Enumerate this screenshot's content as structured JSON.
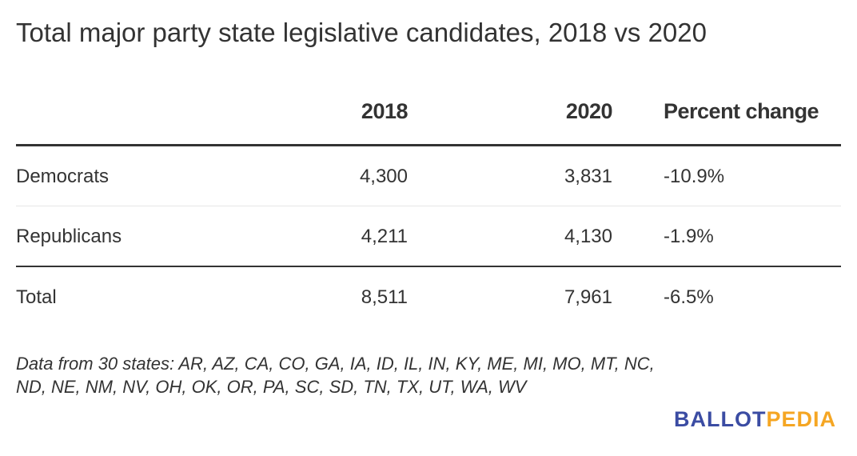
{
  "chart_data": {
    "type": "table",
    "title": "Total major party state legislative candidates, 2018 vs 2020",
    "columns": [
      "",
      "2018",
      "2020",
      "Percent change"
    ],
    "rows": [
      {
        "label": "Democrats",
        "v2018": "4,300",
        "v2020": "3,831",
        "pct": "-10.9%"
      },
      {
        "label": "Republicans",
        "v2018": "4,211",
        "v2020": "4,130",
        "pct": "-1.9%"
      },
      {
        "label": "Total",
        "v2018": "8,511",
        "v2020": "7,961",
        "pct": "-6.5%"
      }
    ],
    "note_line1": "Data from 30 states: AR, AZ, CA, CO, GA, IA, ID, IL, IN, KY, ME, MI, MO, MT, NC,",
    "note_line2": "ND, NE, NM, NV, OH, OK, OR, PA, SC, SD, TN, TX, UT, WA, WV"
  },
  "logo": {
    "part1": "BALLOT",
    "part2": "PEDIA",
    "color1": "#3b4ca3",
    "color2": "#f5a623"
  }
}
